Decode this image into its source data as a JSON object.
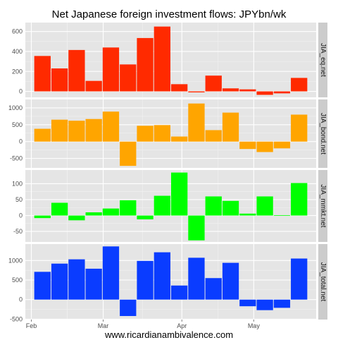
{
  "title": "Net Japanese foreign investment flows: JPYbn/wk",
  "footer": "www.ricardianambivalence.com",
  "colors": {
    "panel_bg": "#e5e5e5",
    "strip_bg": "#cccccc",
    "grid_major": "#ffffff",
    "grid_minor": "#f2f2f2",
    "axis_text": "#4d4d4d"
  },
  "chart_data": {
    "type": "bar",
    "x_tick_labels": [
      "Feb",
      "Mar",
      "Apr",
      "May"
    ],
    "x_tick_weeks": [
      0.35,
      4.55,
      9.15,
      13.35
    ],
    "weeks": 17,
    "facets": [
      {
        "name": "JIA_eq.net",
        "color": "#ff2a00",
        "ylim": [
          -60,
          690
        ],
        "yticks": [
          0,
          200,
          400,
          600
        ],
        "values": [
          355,
          230,
          415,
          105,
          440,
          270,
          535,
          650,
          72,
          -10,
          158,
          30,
          20,
          -35,
          -20,
          135
        ]
      },
      {
        "name": "JIA_bond.net",
        "color": "#ffa500",
        "ylim": [
          -780,
          1250
        ],
        "yticks": [
          -500,
          0,
          500,
          1000
        ],
        "values": [
          380,
          650,
          620,
          670,
          890,
          -720,
          470,
          490,
          150,
          1130,
          340,
          860,
          -220,
          -310,
          -200,
          800
        ]
      },
      {
        "name": "JIA_mmkt.net",
        "color": "#00ff00",
        "ylim": [
          -83,
          143
        ],
        "yticks": [
          -50,
          0,
          50,
          100
        ],
        "values": [
          -8,
          40,
          -15,
          10,
          22,
          48,
          -12,
          62,
          135,
          -78,
          60,
          46,
          6,
          60,
          1,
          102
        ]
      },
      {
        "name": "JIA_total.net",
        "color": "#0a3cff",
        "ylim": [
          -510,
          1420
        ],
        "yticks": [
          -500,
          0,
          500,
          1000
        ],
        "values": [
          710,
          920,
          1030,
          790,
          1360,
          -420,
          990,
          1210,
          360,
          1070,
          550,
          940,
          -170,
          -270,
          -210,
          1050
        ]
      }
    ]
  }
}
